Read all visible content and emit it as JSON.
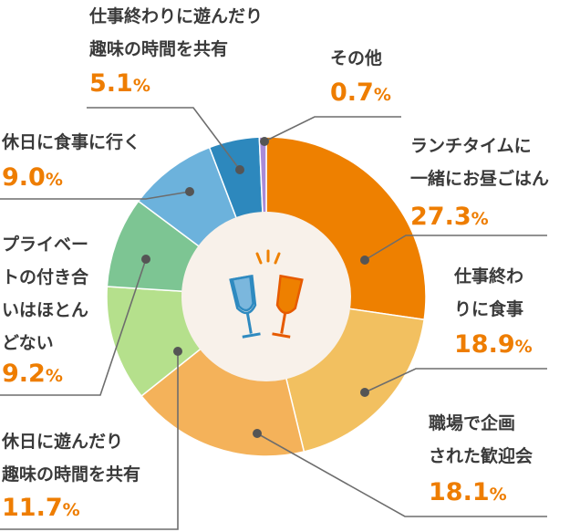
{
  "chart_data": {
    "type": "pie",
    "donut": true,
    "slices": [
      {
        "label_lines": [
          "ランチタイムに",
          "一緒にお昼ごはん"
        ],
        "value": 27.3,
        "num": "27.3",
        "unit": "%",
        "color": "#ee8000"
      },
      {
        "label_lines": [
          "仕事終わ",
          "りに食事"
        ],
        "value": 18.9,
        "num": "18.9",
        "unit": "%",
        "color": "#f2c060"
      },
      {
        "label_lines": [
          "職場で企画",
          "された歓迎会"
        ],
        "value": 18.1,
        "num": "18.1",
        "unit": "%",
        "color": "#f4b25a"
      },
      {
        "label_lines": [
          "休日に遊んだり",
          "趣味の時間を共有"
        ],
        "value": 11.7,
        "num": "11.7",
        "unit": "%",
        "color": "#b5e08c"
      },
      {
        "label_lines": [
          "プライベー",
          "トの付き合",
          "いはほとん",
          "どない"
        ],
        "value": 9.2,
        "num": "9.2",
        "unit": "%",
        "color": "#7dc593"
      },
      {
        "label_lines": [
          "休日に食事に行く"
        ],
        "value": 9.0,
        "num": "9.0",
        "unit": "%",
        "color": "#6cb2dc"
      },
      {
        "label_lines": [
          "仕事終わりに遊んだり",
          "趣味の時間を共有"
        ],
        "value": 5.1,
        "num": "5.1",
        "unit": "%",
        "color": "#2d88bd"
      },
      {
        "label_lines": [
          "その他"
        ],
        "value": 0.7,
        "num": "0.7",
        "unit": "%",
        "color": "#a98bd8"
      }
    ],
    "center_icon": "toasting-glasses-icon",
    "leader_color": "#6d6d6d",
    "center_color": "#f8f1ea"
  }
}
